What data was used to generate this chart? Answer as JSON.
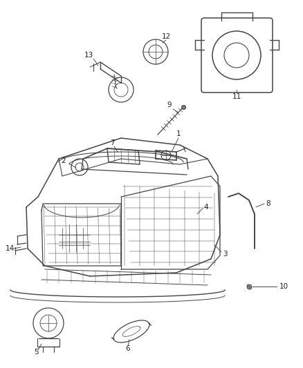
{
  "bg_color": "#ffffff",
  "line_color": "#444444",
  "label_color": "#222222",
  "fig_width": 4.38,
  "fig_height": 5.33,
  "dpi": 100
}
